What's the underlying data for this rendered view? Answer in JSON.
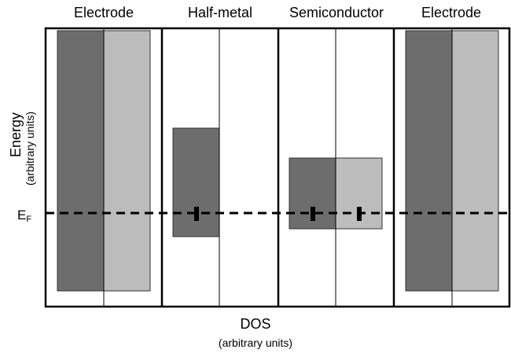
{
  "panels": [
    {
      "title": "Electrode"
    },
    {
      "title": "Half-metal"
    },
    {
      "title": "Semiconductor"
    },
    {
      "title": "Electrode"
    }
  ],
  "y_axis": {
    "label": "Energy",
    "sublabel": "(arbitrary units)"
  },
  "x_axis": {
    "label": "DOS",
    "sublabel": "(arbitrary units)"
  },
  "fermi_level": {
    "symbol": "E",
    "subscript": "F"
  },
  "colors": {
    "spin_up": "#6d6d6d",
    "spin_down": "#bcbcbc",
    "frame": "#000000"
  }
}
